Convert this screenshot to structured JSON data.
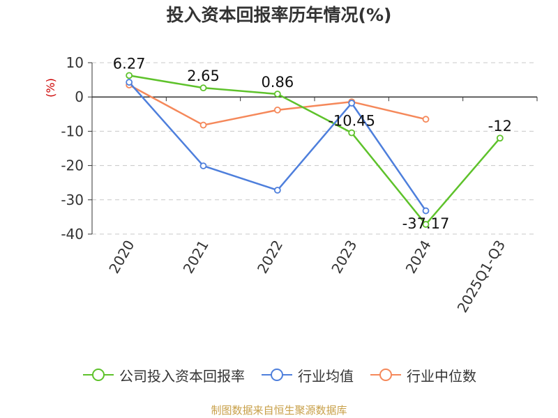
{
  "title": "投入资本回报率历年情况(%)",
  "source": "制图数据来自恒生聚源数据库",
  "colors": {
    "series1": "#5ec22b",
    "series2": "#4e7fdc",
    "series3": "#f5885a",
    "ylabel": "#cc0000"
  },
  "chart_data": {
    "type": "line",
    "title": "投入资本回报率历年情况(%)",
    "ylabel": "(%)",
    "xlabel": "",
    "ylim": [
      -40,
      10
    ],
    "yticks": [
      10,
      0,
      -10,
      -20,
      -30,
      -40
    ],
    "grid": true,
    "legend": "bottom",
    "categories": [
      "2020",
      "2021",
      "2022",
      "2023",
      "2024",
      "2025Q1-Q3"
    ],
    "series": [
      {
        "name": "公司投入资本回报率",
        "color": "#5ec22b",
        "values": [
          6.27,
          2.65,
          0.86,
          -10.45,
          -37.17,
          -12
        ],
        "labels": [
          "6.27",
          "2.65",
          "0.86",
          "-10.45",
          "-37.17",
          "-12"
        ]
      },
      {
        "name": "行业均值",
        "color": "#4e7fdc",
        "values": [
          4.3,
          -20.1,
          -27.2,
          -1.8,
          -33.2,
          null
        ]
      },
      {
        "name": "行业中位数",
        "color": "#f5885a",
        "values": [
          3.5,
          -8.2,
          -3.8,
          -1.4,
          -6.5,
          null
        ]
      }
    ]
  }
}
